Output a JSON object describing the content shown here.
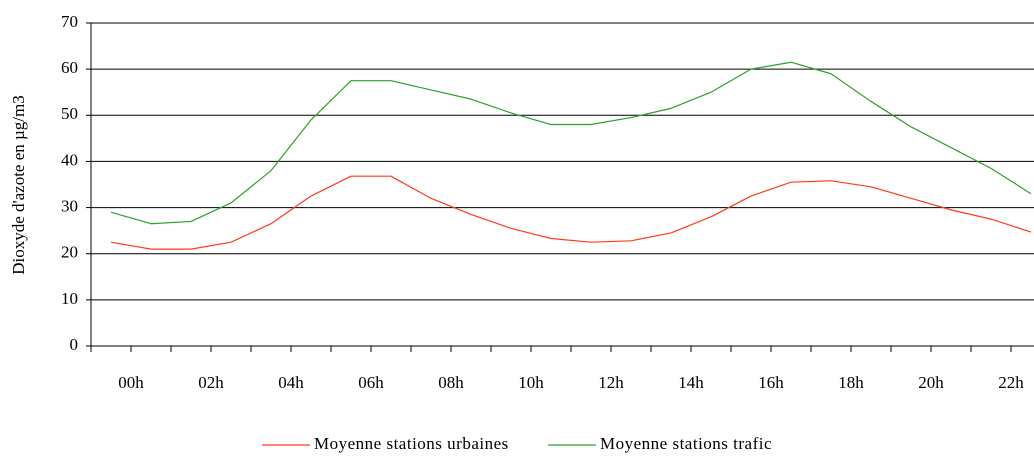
{
  "chart_data": {
    "type": "line",
    "y_label": "Dioxyde d'azote en µg/m3",
    "categories": [
      "00h",
      null,
      "02h",
      null,
      "04h",
      null,
      "06h",
      null,
      "08h",
      null,
      "10h",
      null,
      "12h",
      null,
      "14h",
      null,
      "16h",
      null,
      "18h",
      null,
      "20h",
      null,
      "22h",
      null
    ],
    "series": [
      {
        "name": "Moyenne stations urbaines",
        "color": "#ff3b1f",
        "values": [
          22.5,
          21,
          21,
          22.5,
          26.5,
          32.5,
          36.8,
          36.8,
          32,
          28.5,
          25.5,
          23.3,
          22.5,
          22.8,
          24.5,
          28,
          32.5,
          35.5,
          35.8,
          34.5,
          32,
          29.5,
          27.5,
          24.7
        ]
      },
      {
        "name": "Moyenne stations trafic",
        "color": "#2ca02c",
        "values": [
          29,
          26.5,
          27,
          31,
          38,
          49,
          57.5,
          57.5,
          55.5,
          53.5,
          50.5,
          48,
          48,
          49.5,
          51.5,
          55,
          60,
          61.5,
          59,
          53,
          47.5,
          43,
          38.5,
          33
        ]
      }
    ],
    "ylim": [
      0,
      70
    ],
    "yticks": [
      0,
      10,
      20,
      30,
      40,
      50,
      60,
      70
    ],
    "grid": true
  }
}
